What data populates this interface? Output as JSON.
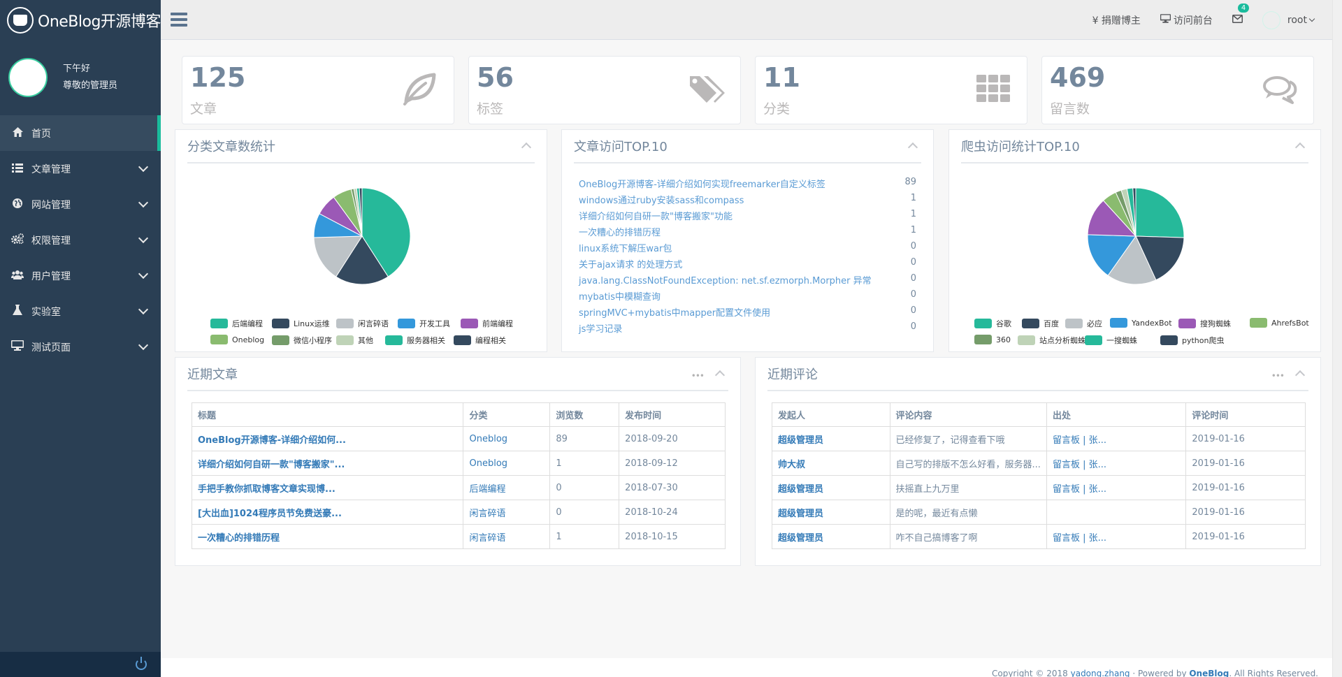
{
  "brand": {
    "title": "OneBlog开源博客"
  },
  "profile": {
    "greeting": "下午好",
    "name": "尊敬的管理员"
  },
  "sidebar": {
    "items": [
      {
        "label": "首页",
        "icon": "home-icon",
        "active": true
      },
      {
        "label": "文章管理",
        "icon": "list-icon"
      },
      {
        "label": "网站管理",
        "icon": "globe-icon"
      },
      {
        "label": "权限管理",
        "icon": "cogs-icon"
      },
      {
        "label": "用户管理",
        "icon": "users-icon"
      },
      {
        "label": "实验室",
        "icon": "flask-icon"
      },
      {
        "label": "测试页面",
        "icon": "desktop-icon"
      }
    ]
  },
  "topnav": {
    "donate": "¥ 捐赠博主",
    "visit": "访问前台",
    "mail_badge": "4",
    "user": "root"
  },
  "tiles": [
    {
      "count": "125",
      "label": "文章",
      "icon": "leaf-icon"
    },
    {
      "count": "56",
      "label": "标签",
      "icon": "tags-icon"
    },
    {
      "count": "11",
      "label": "分类",
      "icon": "grid-icon"
    },
    {
      "count": "469",
      "label": "留言数",
      "icon": "comments-icon"
    }
  ],
  "panels": {
    "category_stats": {
      "title": "分类文章数统计"
    },
    "top_articles": {
      "title": "文章访问TOP.10"
    },
    "spider_stats": {
      "title": "爬虫访问统计TOP.10"
    },
    "recent_articles": {
      "title": "近期文章"
    },
    "recent_comments": {
      "title": "近期评论"
    }
  },
  "chart_data": [
    {
      "type": "pie",
      "title": "分类文章数统计",
      "categories": [
        "后端编程",
        "Linux运维",
        "闲言碎语",
        "开发工具",
        "前端编程",
        "Oneblog",
        "微信小程序",
        "其他",
        "服务器相关",
        "编程相关"
      ],
      "values": [
        45,
        20,
        17,
        9,
        8,
        7,
        1,
        1,
        1,
        1
      ],
      "colors": [
        "#26b99a",
        "#34495e",
        "#bdc3c7",
        "#3498db",
        "#9b59b6",
        "#8abb6f",
        "#759c6a",
        "#bfd3b7",
        "#26b99a",
        "#34495e"
      ],
      "legend_position": "bottom"
    },
    {
      "type": "pie",
      "title": "爬虫访问统计TOP.10",
      "categories": [
        "谷歌",
        "百度",
        "必应",
        "YandexBot",
        "搜狗蜘蛛",
        "AhrefsBot",
        "360",
        "站点分析蜘蛛",
        "一搜蜘蛛",
        "python爬虫"
      ],
      "values": [
        26,
        18,
        17,
        16,
        13,
        5,
        2,
        2,
        2,
        1
      ],
      "colors": [
        "#26b99a",
        "#34495e",
        "#bdc3c7",
        "#3498db",
        "#9b59b6",
        "#8abb6f",
        "#759c6a",
        "#bfd3b7",
        "#26b99a",
        "#34495e"
      ],
      "legend_position": "bottom"
    }
  ],
  "top_articles": [
    {
      "title": "OneBlog开源博客-详细介绍如何实现freemarker自定义标签",
      "count": "89"
    },
    {
      "title": "windows通过ruby安装sass和compass",
      "count": "1"
    },
    {
      "title": "详细介绍如何自研一款\"博客搬家\"功能",
      "count": "1"
    },
    {
      "title": "一次糟心的排错历程",
      "count": "1"
    },
    {
      "title": "linux系统下解压war包",
      "count": "0"
    },
    {
      "title": "关于ajax请求 的处理方式",
      "count": "0"
    },
    {
      "title": "java.lang.ClassNotFoundException: net.sf.ezmorph.Morpher 异常",
      "count": "0"
    },
    {
      "title": "mybatis中模糊查询",
      "count": "0"
    },
    {
      "title": "springMVC+mybatis中mapper配置文件使用",
      "count": "0"
    },
    {
      "title": "js学习记录",
      "count": "0"
    }
  ],
  "recent_articles": {
    "headers": [
      "标题",
      "分类",
      "浏览数",
      "发布时间"
    ],
    "rows": [
      [
        "OneBlog开源博客-详细介绍如何...",
        "Oneblog",
        "89",
        "2018-09-20"
      ],
      [
        "详细介绍如何自研一款\"博客搬家\"...",
        "Oneblog",
        "1",
        "2018-09-12"
      ],
      [
        "手把手教你抓取博客文章实现博...",
        "后端编程",
        "0",
        "2018-07-30"
      ],
      [
        "[大出血]1024程序员节免费送豪...",
        "闲言碎语",
        "0",
        "2018-10-24"
      ],
      [
        "一次糟心的排错历程",
        "闲言碎语",
        "1",
        "2018-10-15"
      ]
    ]
  },
  "recent_comments": {
    "headers": [
      "发起人",
      "评论内容",
      "出处",
      "评论时间"
    ],
    "rows": [
      [
        "超级管理员",
        "已经修复了，记得查看下哦",
        "留言板 | 张...",
        "2019-01-16"
      ],
      [
        "帅大叔",
        "自己写的排版不怎么好看，服务器...",
        "留言板 | 张...",
        "2019-01-16"
      ],
      [
        "超级管理员",
        "扶摇直上九万里",
        "留言板 | 张...",
        "2019-01-16"
      ],
      [
        "超级管理员",
        "是的呢，最近有点懒",
        "",
        "2019-01-16"
      ],
      [
        "超级管理员",
        "咋不自己搞博客了啊",
        "留言板 | 张...",
        "2019-01-16"
      ]
    ]
  },
  "footer": {
    "prefix": "Copyright © 2018 ",
    "author": "yadong.zhang",
    "middle": " · Powered by ",
    "product": "OneBlog",
    "suffix": ". All Rights Reserved."
  }
}
